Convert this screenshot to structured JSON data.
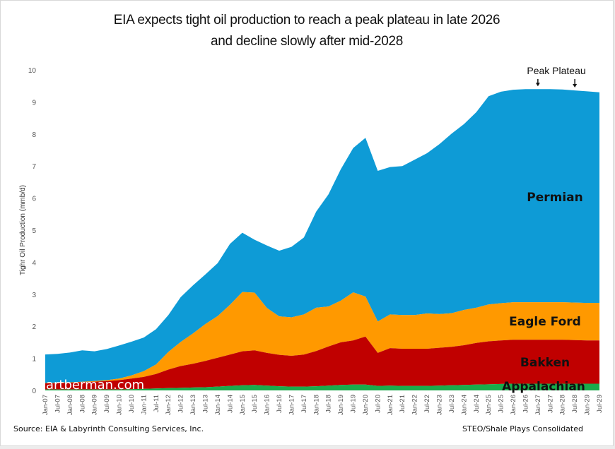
{
  "chart_data": {
    "type": "area",
    "stacked": true,
    "title": "EIA expects tight oil production to reach a peak plateau in late 2026",
    "subtitle": "and decline slowly after mid-2028",
    "xlabel": "",
    "ylabel": "Tighr Oil Production (mmb/d)",
    "ylim": [
      0,
      10
    ],
    "yticks": [
      0,
      1,
      2,
      3,
      4,
      5,
      6,
      7,
      8,
      9,
      10
    ],
    "grid": false,
    "legend": "inline-labels",
    "x": [
      "Jan-07",
      "Jul-07",
      "Jan-08",
      "Jul-08",
      "Jan-09",
      "Jul-09",
      "Jan-10",
      "Jul-10",
      "Jan-11",
      "Jul-11",
      "Jan-12",
      "Jul-12",
      "Jan-13",
      "Jul-13",
      "Jan-14",
      "Jul-14",
      "Jan-15",
      "Jul-15",
      "Jan-16",
      "Jul-16",
      "Jan-17",
      "Jul-17",
      "Jan-18",
      "Jul-18",
      "Jan-19",
      "Jul-19",
      "Jan-20",
      "Jul-20",
      "Jan-21",
      "Jul-21",
      "Jan-22",
      "Jul-22",
      "Jan-23",
      "Jul-23",
      "Jan-24",
      "Jul-24",
      "Jan-25",
      "Jul-25",
      "Jan-26",
      "Jul-26",
      "Jan-27",
      "Jul-27",
      "Jan-28",
      "Jul-28",
      "Jan-29",
      "Jul-29"
    ],
    "series": [
      {
        "name": "Appalachian",
        "color": "#1aab4b",
        "values": [
          0.03,
          0.03,
          0.03,
          0.03,
          0.03,
          0.03,
          0.03,
          0.04,
          0.05,
          0.06,
          0.07,
          0.08,
          0.09,
          0.1,
          0.12,
          0.14,
          0.16,
          0.17,
          0.15,
          0.13,
          0.12,
          0.12,
          0.13,
          0.15,
          0.17,
          0.18,
          0.18,
          0.14,
          0.15,
          0.14,
          0.14,
          0.14,
          0.15,
          0.16,
          0.17,
          0.18,
          0.19,
          0.2,
          0.21,
          0.21,
          0.21,
          0.21,
          0.21,
          0.21,
          0.21,
          0.21
        ]
      },
      {
        "name": "Bakken",
        "color": "#c00000",
        "values": [
          0.19,
          0.2,
          0.21,
          0.23,
          0.24,
          0.26,
          0.29,
          0.33,
          0.37,
          0.45,
          0.58,
          0.68,
          0.74,
          0.82,
          0.9,
          0.98,
          1.06,
          1.08,
          1.02,
          0.98,
          0.96,
          1.0,
          1.1,
          1.22,
          1.33,
          1.38,
          1.5,
          1.03,
          1.17,
          1.16,
          1.16,
          1.16,
          1.18,
          1.2,
          1.24,
          1.3,
          1.34,
          1.36,
          1.37,
          1.37,
          1.37,
          1.37,
          1.37,
          1.36,
          1.35,
          1.35
        ]
      },
      {
        "name": "Eagle Ford",
        "color": "#ff9900",
        "values": [
          0.01,
          0.01,
          0.01,
          0.01,
          0.02,
          0.03,
          0.05,
          0.1,
          0.18,
          0.3,
          0.55,
          0.75,
          0.95,
          1.15,
          1.3,
          1.55,
          1.85,
          1.8,
          1.4,
          1.2,
          1.2,
          1.25,
          1.35,
          1.25,
          1.3,
          1.5,
          1.25,
          0.98,
          1.05,
          1.05,
          1.05,
          1.1,
          1.05,
          1.05,
          1.1,
          1.1,
          1.15,
          1.16,
          1.17,
          1.17,
          1.17,
          1.17,
          1.17,
          1.17,
          1.17,
          1.17
        ]
      },
      {
        "name": "Permian",
        "color": "#0e9bd6",
        "values": [
          0.89,
          0.9,
          0.93,
          0.98,
          0.93,
          0.97,
          1.03,
          1.05,
          1.05,
          1.1,
          1.15,
          1.4,
          1.5,
          1.55,
          1.65,
          1.9,
          1.85,
          1.65,
          1.95,
          2.05,
          2.2,
          2.4,
          3.0,
          3.5,
          4.1,
          4.5,
          4.95,
          4.7,
          4.6,
          4.65,
          4.85,
          5.0,
          5.3,
          5.6,
          5.8,
          6.1,
          6.5,
          6.6,
          6.63,
          6.65,
          6.65,
          6.65,
          6.64,
          6.62,
          6.6,
          6.57
        ]
      }
    ],
    "annotations": [
      {
        "text": "Peak Plateau",
        "arrows_at": [
          "Jan-27",
          "Jul-28"
        ]
      }
    ],
    "watermark": "artberman.com"
  },
  "footer": {
    "source": "Source: EIA & Labyrinth Consulting Services, Inc.",
    "note": "STEO/Shale Plays Consolidated"
  }
}
